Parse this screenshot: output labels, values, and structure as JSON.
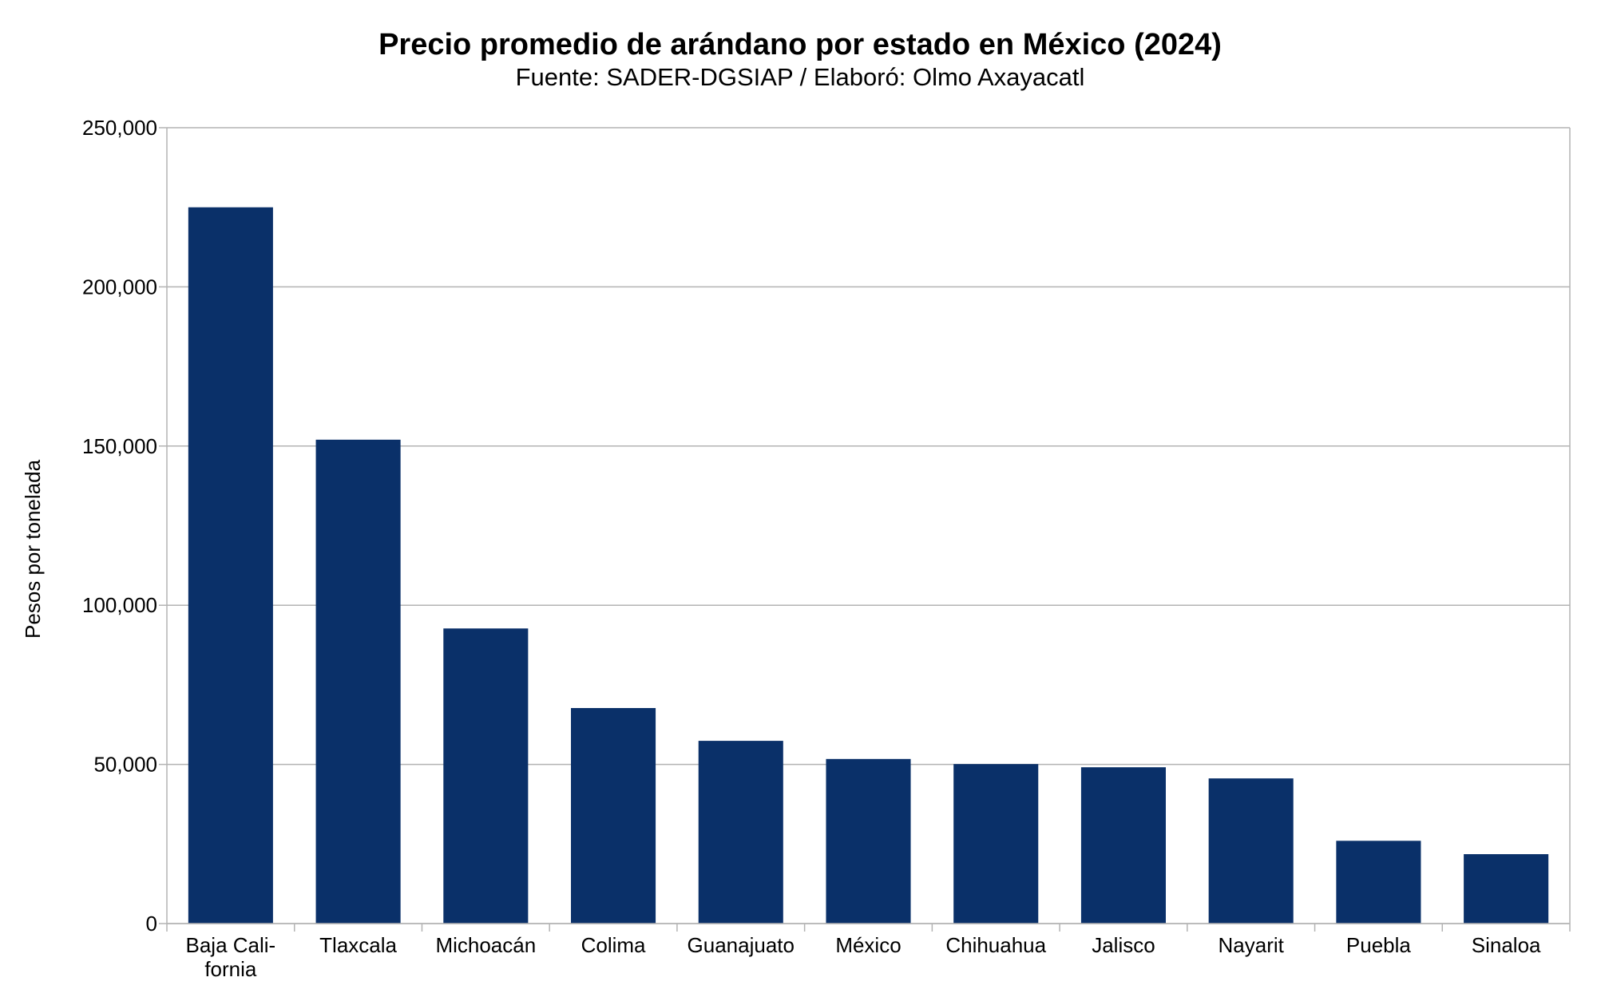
{
  "chart_data": {
    "type": "bar",
    "title": "Precio promedio de arándano por estado en México (2024)",
    "subtitle": "Fuente: SADER-DGSIAP / Elaboró: Olmo Axayacatl",
    "xlabel": "",
    "ylabel": "Pesos por tonelada",
    "ylim": [
      0,
      250000
    ],
    "yticks": [
      0,
      50000,
      100000,
      150000,
      200000,
      250000
    ],
    "ytick_labels": [
      "0",
      "50,000",
      "100,000",
      "150,000",
      "200,000",
      "250,000"
    ],
    "grid": true,
    "categories": [
      [
        "Baja Cali-",
        "fornia"
      ],
      [
        "Tlaxcala"
      ],
      [
        "Michoacán"
      ],
      [
        "Colima"
      ],
      [
        "Guanajuato"
      ],
      [
        "México"
      ],
      [
        "Chihuahua"
      ],
      [
        "Jalisco"
      ],
      [
        "Nayarit"
      ],
      [
        "Puebla"
      ],
      [
        "Sinaloa"
      ]
    ],
    "values": [
      225000,
      152000,
      92700,
      67700,
      57400,
      51700,
      50100,
      49100,
      45600,
      26000,
      21800
    ],
    "bar_color": "#0a3069"
  }
}
